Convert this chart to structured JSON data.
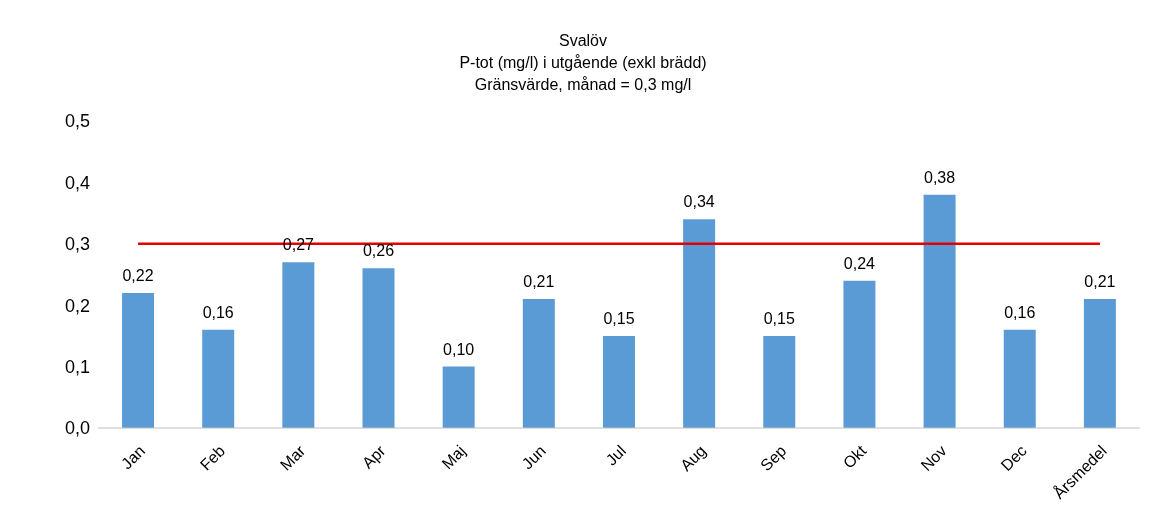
{
  "chart_data": {
    "type": "bar",
    "title": "Svalöv",
    "subtitle": "P-tot (mg/l) i utgående (exkl brädd)\nGränsvärde, månad = 0,3 mg/l",
    "categories": [
      "Jan",
      "Feb",
      "Mar",
      "Apr",
      "Maj",
      "Jun",
      "Jul",
      "Aug",
      "Sep",
      "Okt",
      "Nov",
      "Dec",
      "Årsmedel"
    ],
    "values": [
      0.22,
      0.16,
      0.27,
      0.26,
      0.1,
      0.21,
      0.15,
      0.34,
      0.15,
      0.24,
      0.38,
      0.16,
      0.21
    ],
    "value_labels": [
      "0,22",
      "0,16",
      "0,27",
      "0,26",
      "0,10",
      "0,21",
      "0,15",
      "0,34",
      "0,15",
      "0,24",
      "0,38",
      "0,16",
      "0,21"
    ],
    "color": "#5b9bd5",
    "ylim": [
      0,
      0.5
    ],
    "yticks": [
      {
        "value": 0,
        "label": "0,0"
      },
      {
        "value": 0.1,
        "label": "0,1"
      },
      {
        "value": 0.2,
        "label": "0,2"
      },
      {
        "value": 0.3,
        "label": "0,3"
      },
      {
        "value": 0.4,
        "label": "0,4"
      },
      {
        "value": 0.5,
        "label": "0,5"
      }
    ],
    "ref_lines": [
      {
        "axis": "y",
        "value": 0.3,
        "color": "#e00000"
      }
    ],
    "grid": false,
    "legend": false
  }
}
